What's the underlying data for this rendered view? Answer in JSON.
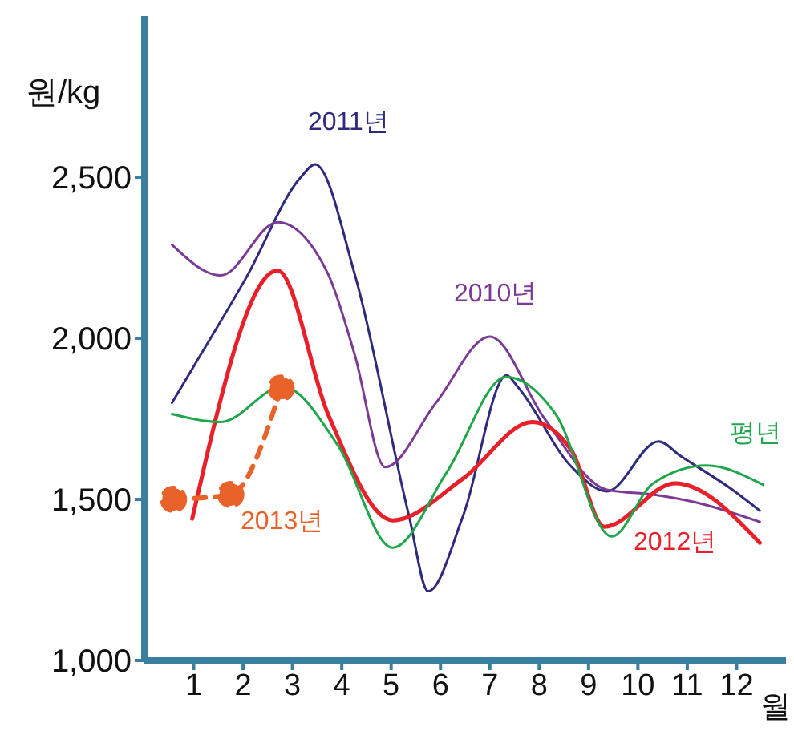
{
  "chart_data": {
    "type": "line",
    "ylabel": "원/kg",
    "xlabel": "월",
    "xlim": [
      0,
      13
    ],
    "xticks": [
      1,
      2,
      3,
      4,
      5,
      6,
      7,
      8,
      9,
      10,
      11,
      12
    ],
    "ylim": [
      1000,
      3000
    ],
    "yticks": [
      {
        "value": 1000,
        "label": "1,000"
      },
      {
        "value": 1500,
        "label": "1,500"
      },
      {
        "value": 2000,
        "label": "2,000"
      },
      {
        "value": 2500,
        "label": "2,500"
      }
    ],
    "series": [
      {
        "name": "2011년",
        "color": "#2e2a7d",
        "marker": "none",
        "line_style": "solid",
        "x": [
          0.56,
          0.97,
          2.07,
          3.17,
          3.46,
          4.26,
          5.36,
          5.75,
          6.46,
          7.34,
          7.56,
          8.66,
          9.37,
          10.42,
          10.86,
          11.96,
          12.47
        ],
        "values": [
          1800,
          1905,
          2190,
          2500,
          2540,
          2200,
          1450,
          1215,
          1450,
          1885,
          1850,
          1600,
          1525,
          1680,
          1635,
          1525,
          1465
        ]
      },
      {
        "name": "2010년",
        "color": "#7a3a96",
        "marker": "none",
        "line_style": "solid",
        "x": [
          0.56,
          1.55,
          2.7,
          3.72,
          4.26,
          4.88,
          5.91,
          7,
          8.11,
          9.37,
          10.31,
          11.19,
          12.47
        ],
        "values": [
          2290,
          2195,
          2360,
          2200,
          1950,
          1600,
          1800,
          2005,
          1750,
          1530,
          1515,
          1490,
          1430
        ]
      },
      {
        "name": "2012년",
        "color": "#e8202a",
        "marker": "none",
        "line_style": "solid",
        "x": [
          0.97,
          2.7,
          3.72,
          5.03,
          6.46,
          7.86,
          8.66,
          9.32,
          10.75,
          12.47
        ],
        "values": [
          1440,
          2210,
          1765,
          1435,
          1565,
          1740,
          1650,
          1415,
          1550,
          1365
        ]
      },
      {
        "name": "평년",
        "color": "#1fa64a",
        "marker": "none",
        "line_style": "solid",
        "x": [
          0.56,
          1.55,
          2.8,
          3.93,
          5.03,
          6.13,
          7.33,
          8.33,
          9.47,
          10.31,
          11.39,
          12.54
        ],
        "values": [
          1765,
          1740,
          1850,
          1665,
          1350,
          1585,
          1880,
          1765,
          1385,
          1550,
          1605,
          1545
        ]
      },
      {
        "name": "2013년",
        "color": "#e8622a",
        "marker": "circle",
        "line_style": "dashed",
        "x": [
          0.59,
          1.75,
          2.77
        ],
        "values": [
          1500,
          1515,
          1845
        ]
      }
    ]
  }
}
